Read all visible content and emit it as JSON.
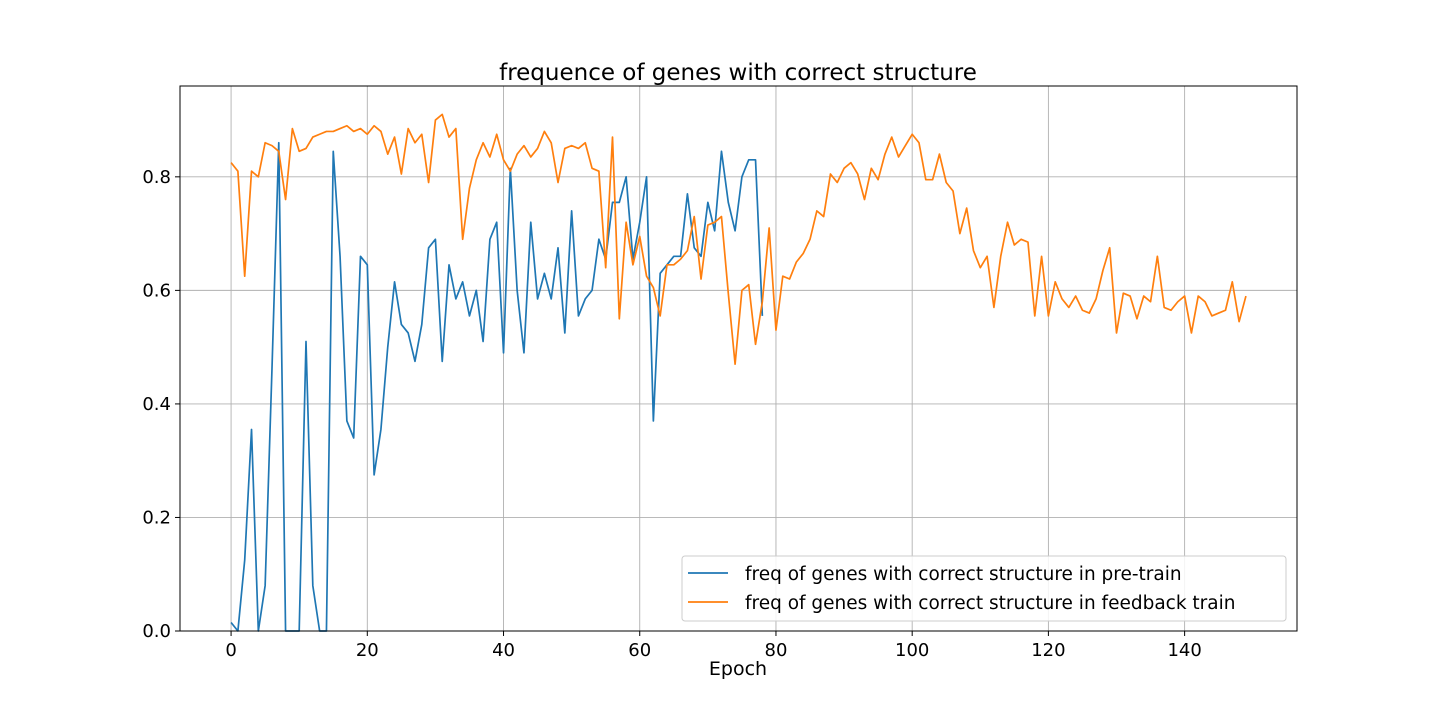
{
  "chart_data": {
    "type": "line",
    "title": "frequence of genes with correct structure",
    "xlabel": "Epoch",
    "ylabel": "",
    "xlim": [
      -7.5,
      156.5
    ],
    "ylim": [
      0.0,
      0.96
    ],
    "xticks": [
      0,
      20,
      40,
      60,
      80,
      100,
      120,
      140
    ],
    "yticks": [
      0.0,
      0.2,
      0.4,
      0.6,
      0.8
    ],
    "xtick_labels": [
      "0",
      "20",
      "40",
      "60",
      "80",
      "100",
      "120",
      "140"
    ],
    "ytick_labels": [
      "0.0",
      "0.2",
      "0.4",
      "0.6",
      "0.8"
    ],
    "grid": true,
    "legend_position": "lower-right",
    "series": [
      {
        "name": "freq of genes with correct structure in pre-train",
        "color": "#1f77b4",
        "x": [
          0,
          1,
          2,
          3,
          4,
          5,
          6,
          7,
          8,
          9,
          10,
          11,
          12,
          13,
          14,
          15,
          16,
          17,
          18,
          19,
          20,
          21,
          22,
          23,
          24,
          25,
          26,
          27,
          28,
          29,
          30,
          31,
          32,
          33,
          34,
          35,
          36,
          37,
          38,
          39,
          40,
          41,
          42,
          43,
          44,
          45,
          46,
          47,
          48,
          49,
          50,
          51,
          52,
          53,
          54,
          55,
          56,
          57,
          58,
          59,
          60,
          61,
          62,
          63,
          64,
          65,
          66,
          67,
          68,
          69,
          70,
          71,
          72,
          73,
          74,
          75,
          76,
          77,
          78
        ],
        "values": [
          0.015,
          0.0,
          0.125,
          0.355,
          0.0,
          0.08,
          0.46,
          0.86,
          0.0,
          0.0,
          0.0,
          0.51,
          0.08,
          0.0,
          0.0,
          0.845,
          0.66,
          0.37,
          0.34,
          0.66,
          0.645,
          0.275,
          0.355,
          0.5,
          0.615,
          0.54,
          0.525,
          0.475,
          0.54,
          0.675,
          0.69,
          0.475,
          0.645,
          0.585,
          0.615,
          0.555,
          0.6,
          0.51,
          0.69,
          0.72,
          0.49,
          0.815,
          0.6,
          0.49,
          0.72,
          0.585,
          0.63,
          0.585,
          0.675,
          0.525,
          0.74,
          0.555,
          0.585,
          0.6,
          0.69,
          0.655,
          0.755,
          0.755,
          0.8,
          0.655,
          0.72,
          0.8,
          0.37,
          0.63,
          0.645,
          0.66,
          0.66,
          0.77,
          0.675,
          0.66,
          0.755,
          0.705,
          0.845,
          0.755,
          0.705,
          0.8,
          0.83,
          0.83,
          0.555
        ]
      },
      {
        "name": "freq of genes with correct structure in feedback train",
        "color": "#ff7f0e",
        "x": [
          0,
          1,
          2,
          3,
          4,
          5,
          6,
          7,
          8,
          9,
          10,
          11,
          12,
          13,
          14,
          15,
          16,
          17,
          18,
          19,
          20,
          21,
          22,
          23,
          24,
          25,
          26,
          27,
          28,
          29,
          30,
          31,
          32,
          33,
          34,
          35,
          36,
          37,
          38,
          39,
          40,
          41,
          42,
          43,
          44,
          45,
          46,
          47,
          48,
          49,
          50,
          51,
          52,
          53,
          54,
          55,
          56,
          57,
          58,
          59,
          60,
          61,
          62,
          63,
          64,
          65,
          66,
          67,
          68,
          69,
          70,
          71,
          72,
          73,
          74,
          75,
          76,
          77,
          78,
          79,
          80,
          81,
          82,
          83,
          84,
          85,
          86,
          87,
          88,
          89,
          90,
          91,
          92,
          93,
          94,
          95,
          96,
          97,
          98,
          99,
          100,
          101,
          102,
          103,
          104,
          105,
          106,
          107,
          108,
          109,
          110,
          111,
          112,
          113,
          114,
          115,
          116,
          117,
          118,
          119,
          120,
          121,
          122,
          123,
          124,
          125,
          126,
          127,
          128,
          129,
          130,
          131,
          132,
          133,
          134,
          135,
          136,
          137,
          138,
          139,
          140,
          141,
          142,
          143,
          144,
          145,
          146,
          147,
          148,
          149
        ],
        "values": [
          0.825,
          0.81,
          0.625,
          0.81,
          0.8,
          0.86,
          0.855,
          0.845,
          0.76,
          0.885,
          0.845,
          0.85,
          0.87,
          0.875,
          0.88,
          0.88,
          0.885,
          0.89,
          0.88,
          0.885,
          0.875,
          0.89,
          0.88,
          0.84,
          0.87,
          0.805,
          0.885,
          0.86,
          0.875,
          0.79,
          0.9,
          0.91,
          0.87,
          0.885,
          0.69,
          0.78,
          0.83,
          0.86,
          0.835,
          0.875,
          0.83,
          0.81,
          0.84,
          0.855,
          0.835,
          0.85,
          0.88,
          0.86,
          0.79,
          0.85,
          0.855,
          0.85,
          0.86,
          0.815,
          0.81,
          0.64,
          0.87,
          0.55,
          0.72,
          0.645,
          0.695,
          0.625,
          0.605,
          0.555,
          0.645,
          0.645,
          0.655,
          0.67,
          0.73,
          0.62,
          0.715,
          0.72,
          0.73,
          0.595,
          0.47,
          0.6,
          0.61,
          0.505,
          0.58,
          0.71,
          0.53,
          0.625,
          0.62,
          0.65,
          0.665,
          0.69,
          0.74,
          0.73,
          0.805,
          0.79,
          0.815,
          0.825,
          0.805,
          0.76,
          0.815,
          0.795,
          0.84,
          0.87,
          0.835,
          0.855,
          0.875,
          0.86,
          0.795,
          0.795,
          0.84,
          0.79,
          0.775,
          0.7,
          0.745,
          0.67,
          0.64,
          0.66,
          0.57,
          0.66,
          0.72,
          0.68,
          0.69,
          0.685,
          0.555,
          0.66,
          0.555,
          0.615,
          0.585,
          0.57,
          0.59,
          0.565,
          0.56,
          0.585,
          0.635,
          0.675,
          0.525,
          0.595,
          0.59,
          0.55,
          0.59,
          0.58,
          0.66,
          0.57,
          0.565,
          0.58,
          0.59,
          0.525,
          0.59,
          0.58,
          0.555,
          0.56,
          0.565,
          0.615,
          0.545,
          0.59
        ]
      }
    ]
  }
}
